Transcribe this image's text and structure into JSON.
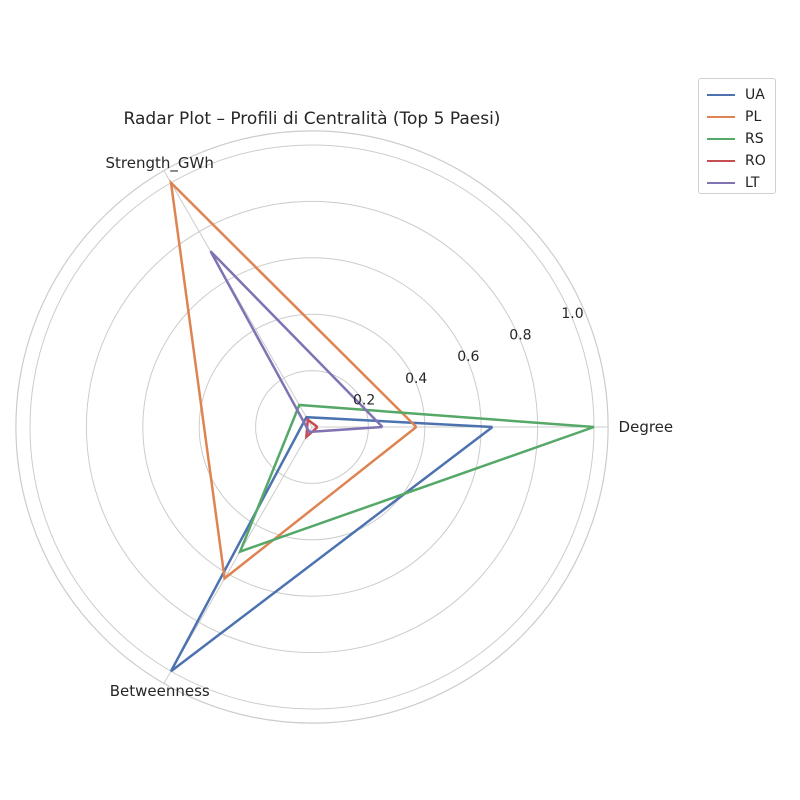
{
  "chart_data": {
    "type": "radar",
    "title": "Radar Plot – Profili di Centralità (Top 5 Paesi)",
    "axes": [
      "Degree",
      "Strength_GWh",
      "Betweenness"
    ],
    "rlim": [
      0,
      1.0
    ],
    "rticks": [
      0.2,
      0.4,
      0.6,
      0.8,
      1.0
    ],
    "rtick_labels": [
      "0.2",
      "0.4",
      "0.6",
      "0.8",
      "1.0"
    ],
    "grid": true,
    "legend_position": "top-right",
    "series": [
      {
        "name": "UA",
        "color": "#4c72b0",
        "values": [
          0.64,
          0.04,
          1.0
        ]
      },
      {
        "name": "PL",
        "color": "#dd8452",
        "values": [
          0.37,
          1.0,
          0.62
        ]
      },
      {
        "name": "RS",
        "color": "#55a868",
        "values": [
          1.0,
          0.09,
          0.51
        ]
      },
      {
        "name": "RO",
        "color": "#c44e52",
        "values": [
          0.02,
          0.03,
          0.04
        ]
      },
      {
        "name": "LT",
        "color": "#8172b3",
        "values": [
          0.25,
          0.72,
          0.02
        ]
      }
    ]
  }
}
